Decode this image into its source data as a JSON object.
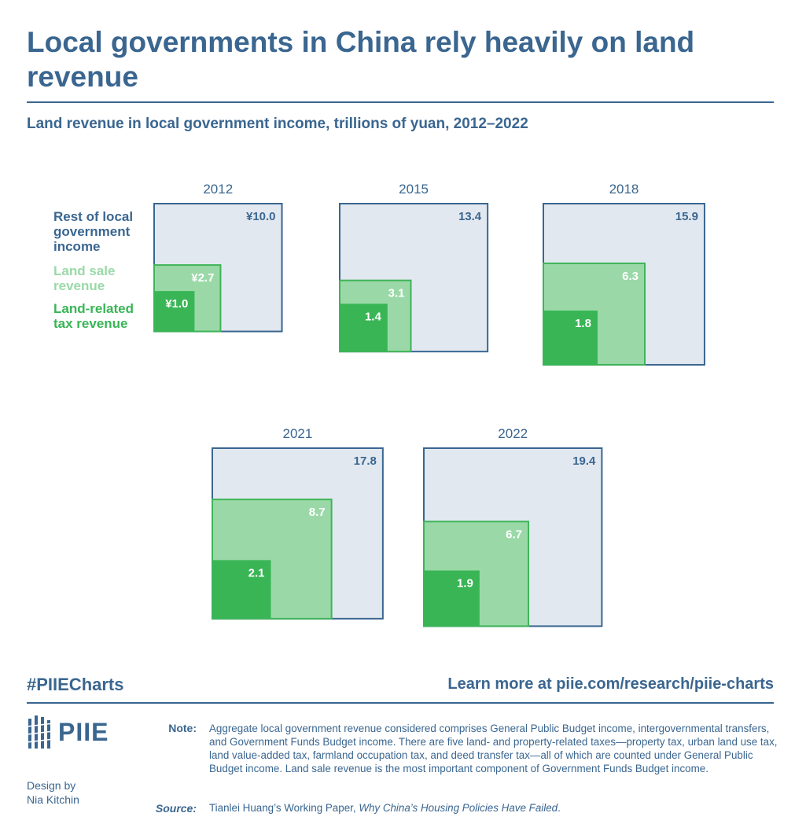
{
  "title": "Local governments in China rely heavily on land revenue",
  "subtitle": "Land revenue in local government income, trillions of yuan, 2012–2022",
  "legend": {
    "rest": "Rest of local government income",
    "land_sale": "Land sale revenue",
    "land_tax": "Land-related tax revenue"
  },
  "colors": {
    "text_blue": "#3a6690",
    "rest_fill": "#e2e8f0",
    "rest_stroke": "#3a6690",
    "land_sale_fill": "#9ad9a7",
    "land_sale_stroke": "#3fb459",
    "land_tax_fill": "#39b556"
  },
  "chart_data": {
    "type": "nested-square",
    "unit": "trillions of yuan",
    "panels": [
      {
        "year": "2012",
        "total": 10.0,
        "land_sale": 2.7,
        "land_tax": 1.0,
        "total_label": "¥10.0",
        "land_sale_label": "¥2.7",
        "land_tax_label": "¥1.0"
      },
      {
        "year": "2015",
        "total": 13.4,
        "land_sale": 3.1,
        "land_tax": 1.4,
        "total_label": "13.4",
        "land_sale_label": "3.1",
        "land_tax_label": "1.4"
      },
      {
        "year": "2018",
        "total": 15.9,
        "land_sale": 6.3,
        "land_tax": 1.8,
        "total_label": "15.9",
        "land_sale_label": "6.3",
        "land_tax_label": "1.8"
      },
      {
        "year": "2021",
        "total": 17.8,
        "land_sale": 8.7,
        "land_tax": 2.1,
        "total_label": "17.8",
        "land_sale_label": "8.7",
        "land_tax_label": "2.1"
      },
      {
        "year": "2022",
        "total": 19.4,
        "land_sale": 6.7,
        "land_tax": 1.9,
        "total_label": "19.4",
        "land_sale_label": "6.7",
        "land_tax_label": "1.9"
      }
    ]
  },
  "footer": {
    "hashtag": "#PIIECharts",
    "learn_more": "Learn more at piie.com/research/piie-charts",
    "logo_text": "PIIE",
    "design_by": "Design by",
    "designer": "Nia Kitchin",
    "note_label": "Note:",
    "note": "Aggregate local government revenue considered comprises General Public Budget income, intergovernmental transfers, and Government Funds Budget income. There are five land- and property-related taxes—property tax, urban land use tax, land value-added tax, farmland occupation tax, and deed transfer tax—all of which are counted under General Public Budget income. Land sale revenue is the most important component of Government Funds Budget income.",
    "source_label": "Source:",
    "source_prefix": "Tianlei Huang’s Working Paper, ",
    "source_title": "Why China’s Housing Policies Have Failed",
    "source_suffix": "."
  }
}
